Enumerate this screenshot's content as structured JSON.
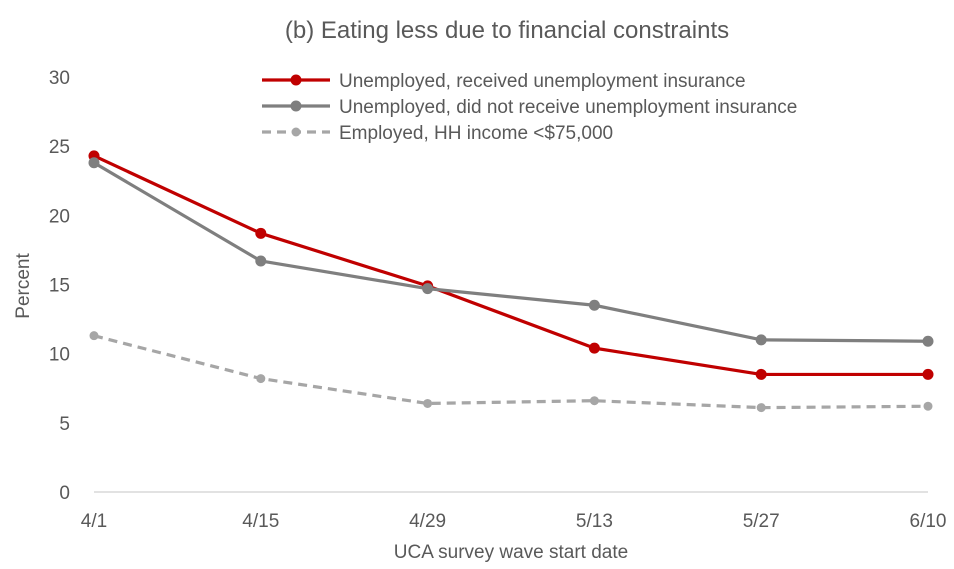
{
  "chart_data": {
    "type": "line",
    "title": "(b) Eating less due to financial constraints",
    "xlabel": "UCA survey wave start date",
    "ylabel": "Percent",
    "categories": [
      "4/1",
      "4/15",
      "4/29",
      "5/13",
      "5/27",
      "6/10"
    ],
    "ylim": [
      0,
      30
    ],
    "yticks": [
      "0",
      "5",
      "10",
      "15",
      "20",
      "25",
      "30"
    ],
    "grid": false,
    "legend_position": "top-right",
    "series": [
      {
        "name": "Unemployed, received unemployment insurance",
        "values": [
          24.3,
          18.7,
          14.9,
          10.4,
          8.5,
          8.5
        ],
        "color": "#c00000",
        "dash": false
      },
      {
        "name": "Unemployed, did not receive unemployment insurance",
        "values": [
          23.8,
          16.7,
          14.7,
          13.5,
          11.0,
          10.9
        ],
        "color": "#7f7f7f",
        "dash": false
      },
      {
        "name": "Employed, HH income <$75,000",
        "values": [
          11.3,
          8.2,
          6.4,
          6.6,
          6.1,
          6.2
        ],
        "color": "#a6a6a6",
        "dash": true
      }
    ]
  }
}
